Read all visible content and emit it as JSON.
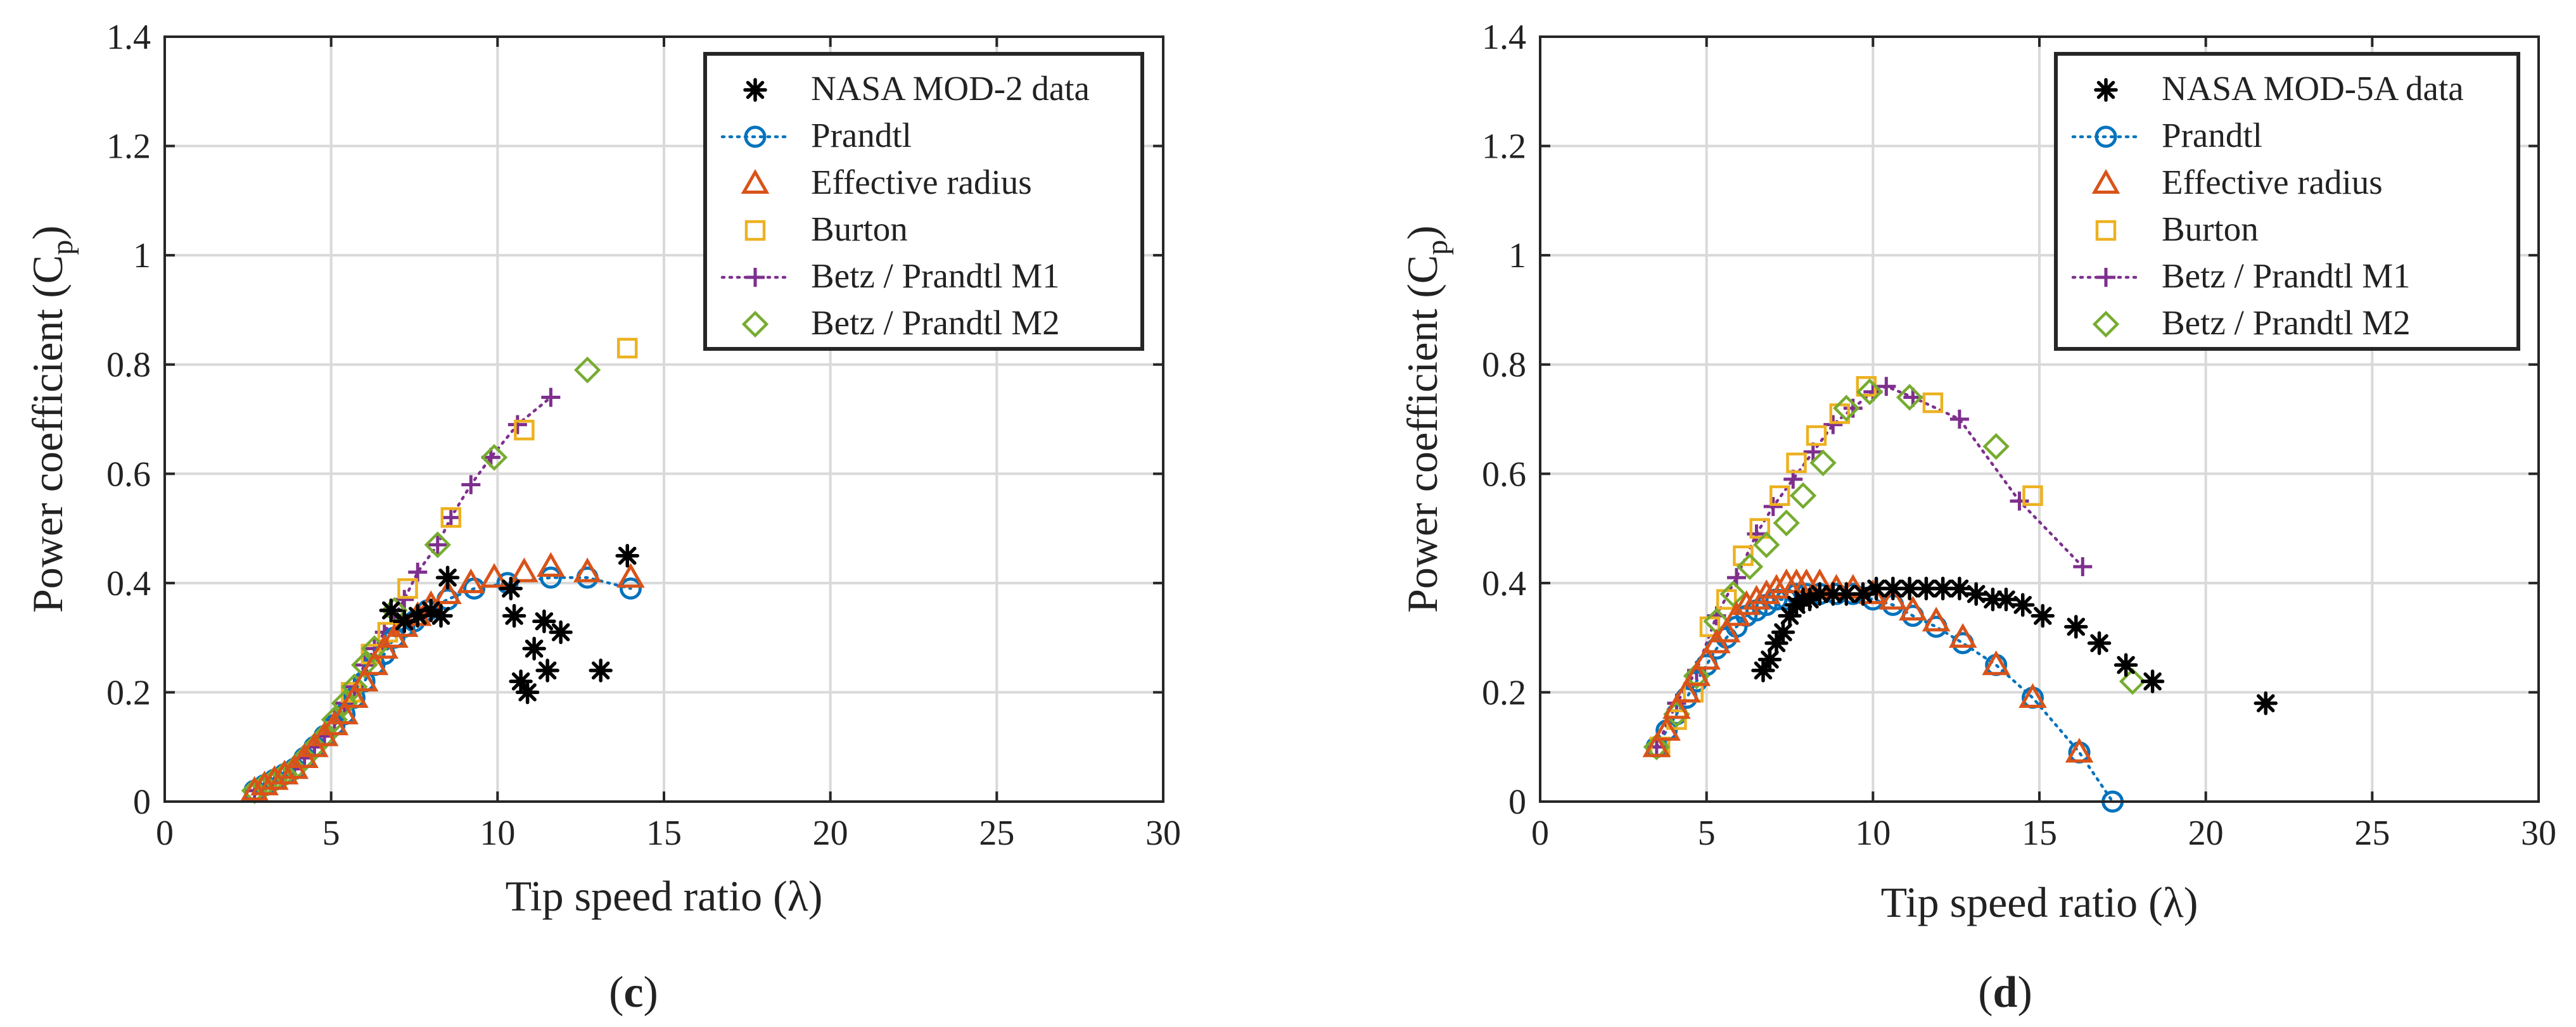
{
  "colors": {
    "nasa": "#000000",
    "prandtl": "#0072BD",
    "effective": "#D95319",
    "burton": "#EDB120",
    "m1": "#7E2F8E",
    "m2": "#77AC30",
    "grid": "#d9d9d9"
  },
  "chart_data": [
    {
      "type": "scatter",
      "panel_label": "c",
      "xlabel": "Tip speed ratio (λ)",
      "ylabel_main": "Power coefficient (C",
      "ylabel_sub": "p",
      "ylabel_close": ")",
      "xlim": [
        0,
        30
      ],
      "ylim": [
        0,
        1.4
      ],
      "xticks": [
        0,
        5,
        10,
        15,
        20,
        25,
        30
      ],
      "yticks": [
        0,
        0.2,
        0.4,
        0.6,
        0.8,
        1,
        1.2,
        1.4
      ],
      "xtick_labels": [
        "0",
        "5",
        "10",
        "15",
        "20",
        "25",
        "30"
      ],
      "ytick_labels": [
        "0",
        "0.2",
        "0.4",
        "0.6",
        "0.8",
        "1",
        "1.2",
        "1.4"
      ],
      "grid": true,
      "legend_position": "top-right",
      "series": [
        {
          "name": "NASA MOD-2 data",
          "key": "nasa",
          "marker": "asterisk",
          "line": false,
          "x": [
            6.8,
            7.2,
            7.6,
            8.0,
            8.3,
            8.5,
            10.4,
            10.5,
            10.7,
            10.9,
            11.1,
            11.4,
            11.5,
            11.9,
            13.1,
            13.9
          ],
          "y": [
            0.35,
            0.33,
            0.34,
            0.35,
            0.34,
            0.41,
            0.39,
            0.34,
            0.22,
            0.2,
            0.28,
            0.33,
            0.24,
            0.31,
            0.24,
            0.45
          ]
        },
        {
          "name": "Prandtl",
          "key": "prandtl",
          "marker": "circle",
          "line": true,
          "x": [
            2.7,
            3.0,
            3.3,
            3.6,
            3.9,
            4.2,
            4.5,
            4.8,
            5.1,
            5.4,
            5.7,
            6.0,
            6.3,
            6.6,
            6.9,
            7.2,
            7.5,
            7.9,
            8.5,
            9.3,
            10.3,
            11.6,
            12.7,
            14.0
          ],
          "y": [
            0.02,
            0.03,
            0.04,
            0.05,
            0.06,
            0.08,
            0.1,
            0.12,
            0.14,
            0.16,
            0.19,
            0.22,
            0.25,
            0.27,
            0.3,
            0.32,
            0.33,
            0.35,
            0.37,
            0.39,
            0.4,
            0.41,
            0.41,
            0.39
          ]
        },
        {
          "name": "Effective radius",
          "key": "effective",
          "marker": "triangle",
          "line": false,
          "x": [
            2.7,
            3.0,
            3.3,
            3.6,
            3.9,
            4.2,
            4.5,
            4.8,
            5.1,
            5.4,
            5.7,
            6.0,
            6.3,
            6.6,
            6.9,
            7.2,
            7.6,
            8.0,
            8.5,
            9.2,
            9.9,
            10.8,
            11.6,
            12.7,
            14.0
          ],
          "y": [
            0.02,
            0.03,
            0.04,
            0.05,
            0.06,
            0.08,
            0.1,
            0.12,
            0.14,
            0.16,
            0.19,
            0.22,
            0.25,
            0.28,
            0.3,
            0.32,
            0.34,
            0.36,
            0.38,
            0.4,
            0.41,
            0.42,
            0.43,
            0.42,
            0.41
          ]
        },
        {
          "name": "Burton",
          "key": "burton",
          "marker": "square",
          "line": false,
          "x": [
            5.6,
            6.2,
            6.7,
            7.3,
            8.6,
            10.8,
            13.9
          ],
          "y": [
            0.2,
            0.27,
            0.31,
            0.39,
            0.52,
            0.68,
            0.83
          ]
        },
        {
          "name": "Betz / Prandtl M1",
          "key": "m1",
          "marker": "plus",
          "line": true,
          "x": [
            2.7,
            3.0,
            3.3,
            3.6,
            3.9,
            4.2,
            4.5,
            4.8,
            5.1,
            5.4,
            5.7,
            6.0,
            6.3,
            6.6,
            6.9,
            7.2,
            7.6,
            8.2,
            8.6,
            9.2,
            9.8,
            10.6,
            11.6
          ],
          "y": [
            0.02,
            0.03,
            0.04,
            0.05,
            0.06,
            0.08,
            0.1,
            0.12,
            0.15,
            0.18,
            0.21,
            0.25,
            0.28,
            0.31,
            0.34,
            0.37,
            0.42,
            0.47,
            0.52,
            0.58,
            0.63,
            0.69,
            0.74
          ]
        },
        {
          "name": "Betz / Prandtl M2",
          "key": "m2",
          "marker": "diamond",
          "line": false,
          "x": [
            2.7,
            3.0,
            3.3,
            3.6,
            3.9,
            4.2,
            4.5,
            4.8,
            5.1,
            5.4,
            5.7,
            6.0,
            6.3,
            6.9,
            8.2,
            9.9,
            12.7
          ],
          "y": [
            0.02,
            0.03,
            0.04,
            0.05,
            0.06,
            0.08,
            0.1,
            0.12,
            0.15,
            0.18,
            0.21,
            0.25,
            0.28,
            0.35,
            0.47,
            0.63,
            0.79
          ]
        }
      ]
    },
    {
      "type": "scatter",
      "panel_label": "d",
      "xlabel": "Tip speed ratio (λ)",
      "ylabel_main": "Power coefficient (C",
      "ylabel_sub": "p",
      "ylabel_close": ")",
      "xlim": [
        0,
        30
      ],
      "ylim": [
        0,
        1.4
      ],
      "xticks": [
        0,
        5,
        10,
        15,
        20,
        25,
        30
      ],
      "yticks": [
        0,
        0.2,
        0.4,
        0.6,
        0.8,
        1,
        1.2,
        1.4
      ],
      "xtick_labels": [
        "0",
        "5",
        "10",
        "15",
        "20",
        "25",
        "30"
      ],
      "ytick_labels": [
        "0",
        "0.2",
        "0.4",
        "0.6",
        "0.8",
        "1",
        "1.2",
        "1.4"
      ],
      "grid": true,
      "legend_position": "top-right",
      "series": [
        {
          "name": "NASA MOD-5A data",
          "key": "nasa",
          "marker": "asterisk",
          "line": false,
          "x": [
            6.7,
            6.9,
            7.1,
            7.3,
            7.5,
            7.7,
            7.9,
            8.1,
            8.4,
            8.8,
            9.2,
            9.7,
            10.1,
            10.6,
            11.1,
            11.6,
            12.1,
            12.6,
            13.1,
            13.6,
            14.0,
            14.5,
            15.1,
            16.1,
            16.8,
            17.6,
            18.4,
            21.8
          ],
          "y": [
            0.24,
            0.26,
            0.29,
            0.31,
            0.34,
            0.36,
            0.37,
            0.37,
            0.38,
            0.38,
            0.38,
            0.38,
            0.39,
            0.39,
            0.39,
            0.39,
            0.39,
            0.39,
            0.38,
            0.37,
            0.37,
            0.36,
            0.34,
            0.32,
            0.29,
            0.25,
            0.22,
            0.18
          ]
        },
        {
          "name": "Prandtl",
          "key": "prandtl",
          "marker": "circle",
          "line": true,
          "x": [
            3.5,
            3.8,
            4.1,
            4.4,
            4.7,
            5.0,
            5.3,
            5.6,
            5.9,
            6.2,
            6.5,
            6.8,
            7.1,
            7.4,
            7.7,
            8.0,
            8.4,
            8.9,
            9.4,
            10.0,
            10.6,
            11.2,
            11.9,
            12.7,
            13.7,
            14.8,
            16.2,
            17.2
          ],
          "y": [
            0.1,
            0.13,
            0.16,
            0.19,
            0.22,
            0.25,
            0.28,
            0.3,
            0.32,
            0.34,
            0.35,
            0.36,
            0.37,
            0.37,
            0.38,
            0.38,
            0.38,
            0.38,
            0.38,
            0.37,
            0.36,
            0.34,
            0.32,
            0.29,
            0.25,
            0.19,
            0.09,
            0.0
          ]
        },
        {
          "name": "Effective radius",
          "key": "effective",
          "marker": "triangle",
          "line": false,
          "x": [
            3.5,
            3.8,
            4.1,
            4.4,
            4.7,
            5.0,
            5.3,
            5.6,
            5.9,
            6.2,
            6.5,
            6.8,
            7.1,
            7.4,
            7.7,
            8.0,
            8.4,
            8.9,
            9.4,
            10.0,
            10.6,
            11.2,
            11.9,
            12.7,
            13.7,
            14.8,
            16.2
          ],
          "y": [
            0.1,
            0.13,
            0.17,
            0.2,
            0.23,
            0.26,
            0.29,
            0.31,
            0.34,
            0.36,
            0.37,
            0.38,
            0.39,
            0.4,
            0.4,
            0.4,
            0.4,
            0.39,
            0.39,
            0.38,
            0.37,
            0.35,
            0.33,
            0.3,
            0.25,
            0.19,
            0.09
          ]
        },
        {
          "name": "Burton",
          "key": "burton",
          "marker": "square",
          "line": false,
          "x": [
            3.6,
            4.1,
            4.6,
            5.1,
            5.6,
            6.1,
            6.6,
            7.2,
            7.7,
            8.3,
            9.0,
            9.8,
            11.8,
            14.8
          ],
          "y": [
            0.1,
            0.15,
            0.2,
            0.32,
            0.37,
            0.45,
            0.5,
            0.56,
            0.62,
            0.67,
            0.71,
            0.76,
            0.73,
            0.56
          ]
        },
        {
          "name": "Betz / Prandtl M1",
          "key": "m1",
          "marker": "plus",
          "line": true,
          "x": [
            3.5,
            4.1,
            4.7,
            5.3,
            5.9,
            6.5,
            7.0,
            7.6,
            8.2,
            8.8,
            9.4,
            10.0,
            10.4,
            11.2,
            12.6,
            14.4,
            16.3
          ],
          "y": [
            0.1,
            0.18,
            0.24,
            0.34,
            0.41,
            0.49,
            0.54,
            0.59,
            0.64,
            0.69,
            0.72,
            0.75,
            0.76,
            0.74,
            0.7,
            0.55,
            0.43
          ]
        },
        {
          "name": "Betz / Prandtl M2",
          "key": "m2",
          "marker": "diamond",
          "line": false,
          "x": [
            3.5,
            4.1,
            4.7,
            5.3,
            5.8,
            6.3,
            6.8,
            7.4,
            7.9,
            8.5,
            9.2,
            9.9,
            11.1,
            13.7,
            17.8
          ],
          "y": [
            0.1,
            0.16,
            0.23,
            0.33,
            0.38,
            0.43,
            0.47,
            0.51,
            0.56,
            0.62,
            0.72,
            0.75,
            0.74,
            0.65,
            0.22
          ]
        }
      ]
    }
  ]
}
